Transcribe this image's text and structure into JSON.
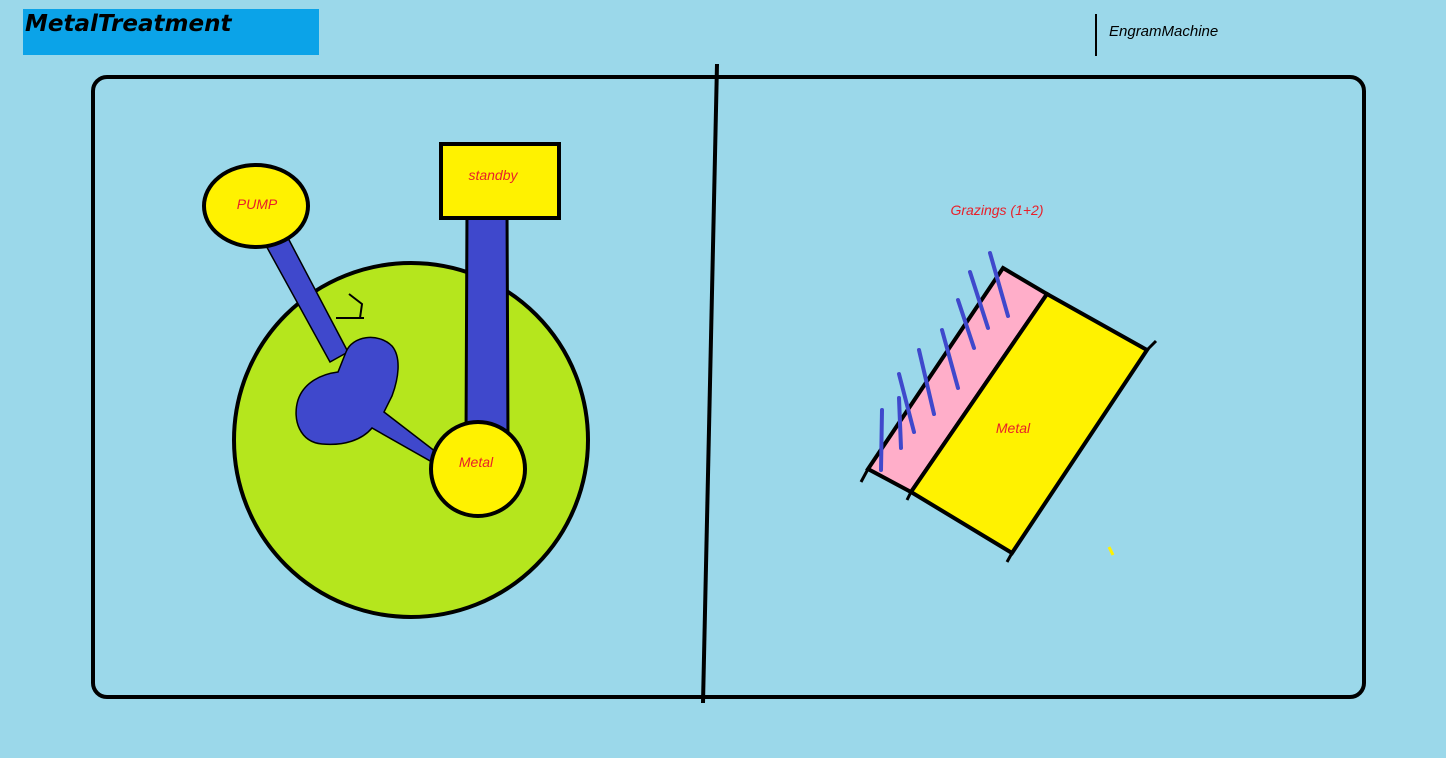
{
  "header": {
    "title": "MetalTreatment",
    "brand": "EngramMachine"
  },
  "left_panel": {
    "pump_label": "PUMP",
    "standby_label": "standby",
    "metal_label": "Metal"
  },
  "right_panel": {
    "grazings_label": "Grazings (1+2)",
    "metal_label": "Metal"
  },
  "colors": {
    "background": "#9bd8ea",
    "title_bar": "#0ba3e8",
    "tank": "#b5e61d",
    "yellow": "#fff200",
    "pipe_blue": "#3f48cc",
    "pink": "#ffaec9",
    "label_red": "#e8202a"
  }
}
